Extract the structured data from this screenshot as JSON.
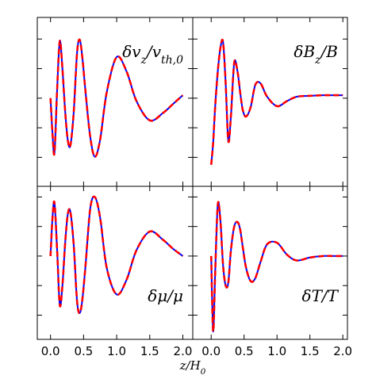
{
  "chart_data": [
    {
      "type": "line",
      "label": [
        "δv",
        "z",
        "/v",
        "th,0"
      ],
      "label_loc": "upper right",
      "x": [
        0,
        0.03,
        0.06,
        0.1,
        0.14,
        0.18,
        0.22,
        0.26,
        0.3,
        0.35,
        0.4,
        0.44,
        0.48,
        0.53,
        0.6,
        0.67,
        0.75,
        0.85,
        1.0,
        1.15,
        1.3,
        1.5,
        1.7,
        1.85,
        2.0
      ],
      "series": [
        {
          "color": "#0000ff",
          "dash": false,
          "values": [
            0,
            -1.2,
            -1.85,
            0.3,
            1.93,
            1.0,
            -0.4,
            -1.4,
            -1.6,
            -0.5,
            1.5,
            1.98,
            1.4,
            0.2,
            -1.3,
            -1.98,
            -1.4,
            0.2,
            1.39,
            0.9,
            -0.1,
            -0.75,
            -0.5,
            -0.2,
            0.1
          ]
        },
        {
          "color": "#ff0000",
          "dash": true,
          "values": [
            0,
            -1.2,
            -1.85,
            0.3,
            1.93,
            1.0,
            -0.4,
            -1.4,
            -1.6,
            -0.5,
            1.5,
            1.98,
            1.4,
            0.2,
            -1.3,
            -1.98,
            -1.4,
            0.2,
            1.39,
            0.9,
            -0.1,
            -0.75,
            -0.5,
            -0.2,
            0.1
          ]
        }
      ],
      "xlim": [
        -0.2,
        2.15
      ],
      "ylim": [
        -2.98,
        2.73
      ],
      "xticks": [
        0,
        0.5,
        1,
        1.5,
        2
      ],
      "yticks": [
        -2,
        -1,
        0,
        1,
        2
      ]
    },
    {
      "type": "line",
      "label": [
        "δB",
        "z",
        "/B"
      ],
      "label_loc": "upper right",
      "x": [
        0,
        0.03,
        0.06,
        0.1,
        0.14,
        0.18,
        0.22,
        0.26,
        0.3,
        0.35,
        0.4,
        0.44,
        0.48,
        0.53,
        0.6,
        0.67,
        0.75,
        0.85,
        1.0,
        1.15,
        1.3,
        1.5,
        1.7,
        1.85,
        2.0
      ],
      "series": [
        {
          "color": "#0000ff",
          "dash": false,
          "values": [
            -2.25,
            -1.5,
            -0.3,
            0.9,
            1.7,
            1.9,
            0.5,
            -1.45,
            -0.6,
            1.2,
            0.9,
            0.2,
            -0.4,
            -0.62,
            -0.3,
            0.45,
            0.5,
            0.05,
            -0.27,
            -0.1,
            0.05,
            0.08,
            0.1,
            0.1,
            0.1
          ]
        },
        {
          "color": "#ff0000",
          "dash": true,
          "values": [
            -2.25,
            -1.5,
            -0.3,
            0.9,
            1.7,
            1.9,
            0.5,
            -1.45,
            -0.6,
            1.2,
            0.9,
            0.2,
            -0.4,
            -0.62,
            -0.3,
            0.45,
            0.5,
            0.05,
            -0.27,
            -0.1,
            0.05,
            0.08,
            0.1,
            0.1,
            0.1
          ]
        }
      ],
      "xlim": [
        -0.28,
        2.07
      ],
      "ylim": [
        -2.98,
        2.73
      ],
      "xticks": [
        0,
        0.5,
        1,
        1.5,
        2
      ],
      "yticks": [
        -2,
        -1,
        0,
        1,
        2
      ]
    },
    {
      "type": "line",
      "label": [
        "δμ/μ"
      ],
      "label_loc": "lower right",
      "xlabel": [
        "z/H",
        "0"
      ],
      "x": [
        0,
        0.03,
        0.06,
        0.1,
        0.14,
        0.18,
        0.22,
        0.26,
        0.3,
        0.35,
        0.4,
        0.44,
        0.48,
        0.53,
        0.6,
        0.67,
        0.75,
        0.85,
        1.0,
        1.15,
        1.3,
        1.5,
        1.7,
        1.85,
        2.0
      ],
      "series": [
        {
          "color": "#0000ff",
          "dash": false,
          "values": [
            0,
            1.3,
            1.8,
            0.2,
            -1.66,
            -1.0,
            0.4,
            1.4,
            1.5,
            0.4,
            -1.5,
            -1.93,
            -1.5,
            -0.3,
            1.6,
            2.0,
            1.3,
            -0.4,
            -1.3,
            -0.8,
            0.2,
            0.83,
            0.55,
            0.25,
            0
          ]
        },
        {
          "color": "#ff0000",
          "dash": true,
          "values": [
            0,
            1.3,
            1.8,
            0.2,
            -1.66,
            -1.0,
            0.4,
            1.4,
            1.5,
            0.4,
            -1.5,
            -1.93,
            -1.5,
            -0.3,
            1.6,
            2.0,
            1.3,
            -0.4,
            -1.3,
            -0.8,
            0.2,
            0.83,
            0.55,
            0.25,
            0
          ]
        }
      ],
      "xlim": [
        -0.2,
        2.15
      ],
      "ylim": [
        -2.82,
        2.36
      ],
      "xticks": [
        {
          "value": 0,
          "label": "0.0"
        },
        {
          "value": 0.5,
          "label": "0.5"
        },
        {
          "value": 1,
          "label": "1.0"
        },
        {
          "value": 1.5,
          "label": "1.5"
        },
        {
          "value": 2,
          "label": "2.0"
        }
      ],
      "yticks": [
        -2,
        -1,
        0,
        1,
        2
      ]
    },
    {
      "type": "line",
      "label": [
        "δT/T"
      ],
      "label_loc": "lower right",
      "x": [
        0,
        0.03,
        0.06,
        0.1,
        0.14,
        0.18,
        0.22,
        0.26,
        0.3,
        0.35,
        0.4,
        0.44,
        0.48,
        0.53,
        0.6,
        0.67,
        0.75,
        0.85,
        1.0,
        1.15,
        1.3,
        1.5,
        1.7,
        1.85,
        2.0
      ],
      "series": [
        {
          "color": "#0000ff",
          "dash": false,
          "values": [
            0,
            -2.55,
            -0.6,
            1.74,
            1.2,
            -0.3,
            -1.0,
            -0.9,
            0.2,
            1.0,
            1.15,
            0.9,
            0.3,
            -0.4,
            -0.85,
            -0.75,
            -0.2,
            0.4,
            0.45,
            0.05,
            -0.15,
            -0.05,
            0,
            0,
            0
          ]
        },
        {
          "color": "#ff0000",
          "dash": true,
          "values": [
            0,
            -2.55,
            -0.6,
            1.74,
            1.2,
            -0.3,
            -1.0,
            -0.9,
            0.2,
            1.0,
            1.15,
            0.9,
            0.3,
            -0.4,
            -0.85,
            -0.75,
            -0.2,
            0.4,
            0.45,
            0.05,
            -0.15,
            -0.05,
            0,
            0,
            0
          ]
        }
      ],
      "xlim": [
        -0.28,
        2.07
      ],
      "ylim": [
        -2.82,
        2.36
      ],
      "xticks": [
        {
          "value": 0,
          "label": "0.0"
        },
        {
          "value": 0.5,
          "label": "0.5"
        },
        {
          "value": 1,
          "label": "1.0"
        },
        {
          "value": 1.5,
          "label": "1.5"
        },
        {
          "value": 2,
          "label": "2.0"
        }
      ],
      "yticks": [
        -2,
        -1,
        0,
        1,
        2
      ]
    }
  ]
}
